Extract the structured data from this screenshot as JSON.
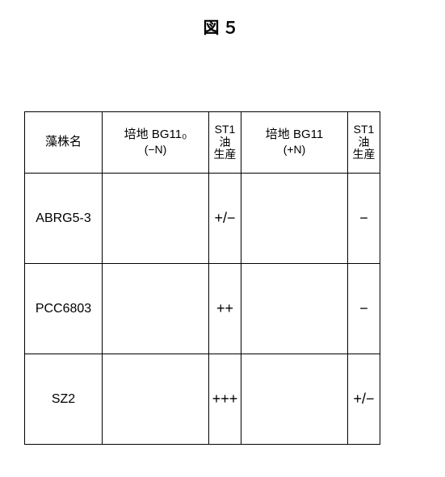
{
  "figure_label": "図５",
  "headers": {
    "strain_name": "藻株名",
    "medium_minus_n": {
      "line1": "培地 BG11₀",
      "line2": "(−N)"
    },
    "st1_oil": {
      "l1": "ST1",
      "l2": "油",
      "l3": "生産"
    },
    "medium_plus_n": {
      "line1": "培地 BG11",
      "line2": "(+N)"
    }
  },
  "rows": [
    {
      "name": "ABRG5-3",
      "img_minus": {
        "style": "sparse_dots",
        "bg": "#070707",
        "scalebar": true
      },
      "score_minus": "+/−",
      "img_plus": {
        "style": "faint_filaments",
        "bg": "#171717",
        "scalebar": true
      },
      "score_plus": "−"
    },
    {
      "name": "PCC6803",
      "img_minus": {
        "style": "dense_dots",
        "bg": "#0a0a0a",
        "scalebar": true
      },
      "score_minus": "++",
      "img_plus": {
        "style": "few_grey_dots",
        "bg": "#0b0b0b",
        "scalebar": true
      },
      "score_plus": "−"
    },
    {
      "name": "SZ2",
      "img_minus": {
        "style": "very_dense_dots",
        "bg": "#2a2a2a",
        "scalebar": true
      },
      "score_minus": "+++",
      "img_plus": {
        "style": "bright_filaments",
        "bg": "#0d0d0d",
        "scalebar": true
      },
      "score_plus": "+/−"
    }
  ],
  "colors": {
    "page_bg": "#ffffff",
    "border": "#000000",
    "text": "#000000",
    "scalebar": "#ffffff"
  },
  "font_sizes": {
    "figure_label": 20,
    "header": 15,
    "name": 16,
    "score": 18
  }
}
